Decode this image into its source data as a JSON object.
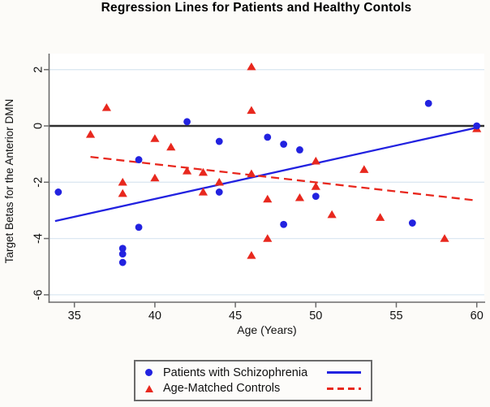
{
  "title": "Regression Lines for Patients and Healthy Contols",
  "colors": {
    "patients_blue": "#2222e0",
    "controls_red": "#e8281e",
    "grid": "#dce8f2",
    "zero_line": "#2e2e2e",
    "axis": "#6b6b6b",
    "tick_text": "#111111"
  },
  "chart_data": {
    "type": "scatter",
    "title": "Regression Lines for Patients and Healthy Contols",
    "xlabel": "Age (Years)",
    "ylabel": "Target Betas for the Anterior DMN",
    "xlim": [
      33.4,
      60.5
    ],
    "ylim": [
      -6.3,
      2.6
    ],
    "x_ticks": [
      35,
      40,
      45,
      50,
      55,
      60
    ],
    "y_ticks": [
      2,
      0,
      -2,
      -4,
      -6
    ],
    "grid": true,
    "zero_reference_line": 0,
    "legend_position": "bottom-center",
    "series": [
      {
        "id": "patients",
        "name": "Patients with Schizophrenia",
        "marker": "circle",
        "color": "#2222e0",
        "points": [
          [
            34,
            -2.35
          ],
          [
            38,
            -4.35
          ],
          [
            38,
            -4.55
          ],
          [
            38,
            -4.85
          ],
          [
            39,
            -1.2
          ],
          [
            39,
            -3.6
          ],
          [
            42,
            0.15
          ],
          [
            44,
            -0.55
          ],
          [
            44,
            -2.35
          ],
          [
            47,
            -0.4
          ],
          [
            48,
            -0.65
          ],
          [
            48,
            -3.5
          ],
          [
            49,
            -0.85
          ],
          [
            50,
            -2.5
          ],
          [
            56,
            -3.45
          ],
          [
            57,
            0.8
          ],
          [
            60,
            0
          ]
        ]
      },
      {
        "id": "controls",
        "name": "Age-Matched Controls",
        "marker": "triangle",
        "color": "#e8281e",
        "points": [
          [
            36,
            -0.3
          ],
          [
            37,
            0.65
          ],
          [
            38,
            -2.0
          ],
          [
            38,
            -2.4
          ],
          [
            40,
            -0.45
          ],
          [
            40,
            -1.85
          ],
          [
            41,
            -0.75
          ],
          [
            42,
            -1.6
          ],
          [
            43,
            -1.65
          ],
          [
            43,
            -2.35
          ],
          [
            44,
            -2.0
          ],
          [
            46,
            2.1
          ],
          [
            46,
            0.55
          ],
          [
            46,
            -1.7
          ],
          [
            46,
            -4.6
          ],
          [
            47,
            -2.6
          ],
          [
            47,
            -4.0
          ],
          [
            49,
            -2.55
          ],
          [
            50,
            -1.25
          ],
          [
            50,
            -2.15
          ],
          [
            51,
            -3.15
          ],
          [
            53,
            -1.55
          ],
          [
            54,
            -3.25
          ],
          [
            58,
            -4.0
          ],
          [
            60,
            -0.1
          ]
        ]
      }
    ],
    "regression_lines": [
      {
        "id": "patients",
        "name": "Patients with Schizophrenia",
        "style": "solid",
        "color": "#2222e0",
        "x1": 33.8,
        "y1": -3.38,
        "x2": 60.0,
        "y2": -0.06
      },
      {
        "id": "controls",
        "name": "Age-Matched Controls",
        "style": "dashed",
        "color": "#e8281e",
        "x1": 36.0,
        "y1": -1.1,
        "x2": 60.0,
        "y2": -2.65
      }
    ]
  }
}
